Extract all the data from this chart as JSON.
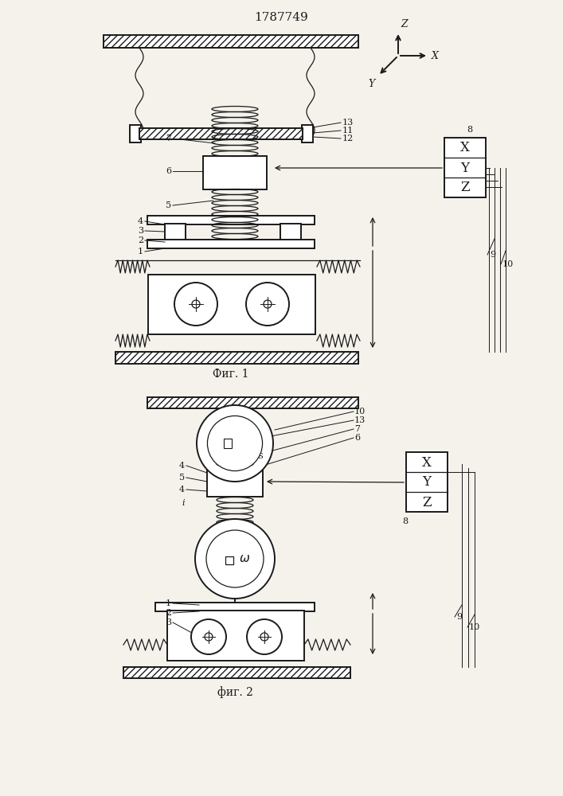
{
  "title": "1787749",
  "bg_color": "#f5f2ec",
  "line_color": "#1a1a1a",
  "fig1_label": "Фиг. 1",
  "fig2_label": "фиг. 2"
}
